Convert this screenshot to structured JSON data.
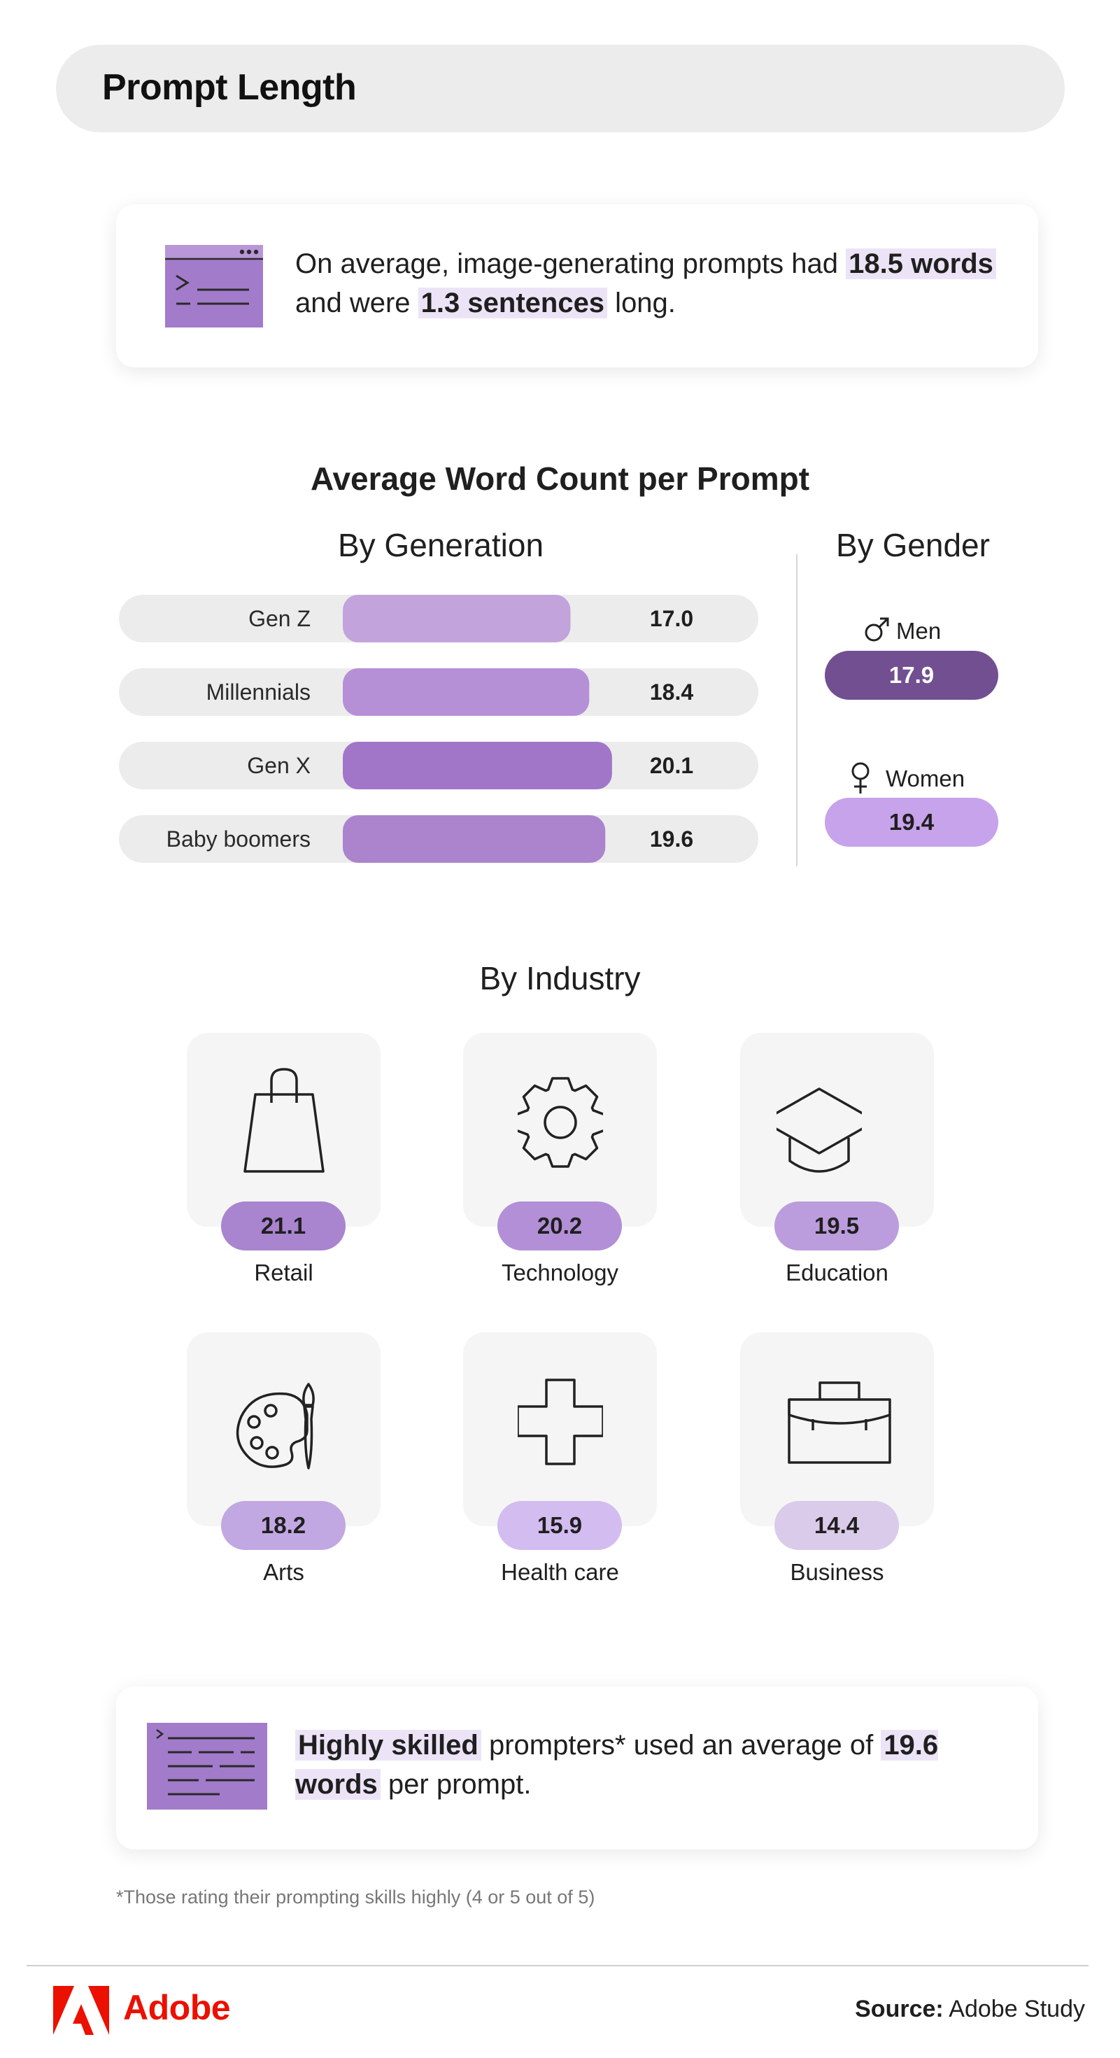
{
  "header": {
    "title": "Prompt Length"
  },
  "summary": {
    "pre": "On average, image-generating prompts had ",
    "highlight1": "18.5 words",
    "mid": " and were ",
    "highlight2": "1.3 sentences",
    "post": " long."
  },
  "chart_data": [
    {
      "type": "bar",
      "title": "Average Word Count per Prompt",
      "subtitle": "By Generation",
      "categories": [
        "Gen Z",
        "Millennials",
        "Gen X",
        "Baby boomers"
      ],
      "values": [
        17.0,
        18.4,
        20.1,
        19.6
      ],
      "value_labels": [
        "17.0",
        "18.4",
        "20.1",
        "19.6"
      ],
      "colors": [
        "#c2a3dc",
        "#b690d6",
        "#a176c8",
        "#ab84cd"
      ],
      "orientation": "horizontal"
    },
    {
      "type": "bar",
      "subtitle": "By Gender",
      "categories": [
        "Men",
        "Women"
      ],
      "values": [
        17.9,
        19.4
      ],
      "value_labels": [
        "17.9",
        "19.4"
      ],
      "colors": [
        "#724f91",
        "#c7a3eb"
      ]
    },
    {
      "type": "table",
      "subtitle": "By Industry",
      "categories": [
        "Retail",
        "Technology",
        "Education",
        "Arts",
        "Health care",
        "Business"
      ],
      "values": [
        21.1,
        20.2,
        19.5,
        18.2,
        15.9,
        14.4
      ],
      "value_labels": [
        "21.1",
        "20.2",
        "19.5",
        "18.2",
        "15.9",
        "14.4"
      ],
      "icons": [
        "shopping-bag-icon",
        "gear-icon",
        "graduation-cap-icon",
        "palette-icon",
        "medical-cross-icon",
        "briefcase-icon"
      ],
      "colors": [
        "#a984cf",
        "#b28fd6",
        "#bb9ddd",
        "#c2a8e2",
        "#d3bcf0",
        "#dacbea"
      ]
    }
  ],
  "skilled": {
    "highlight1": "Highly skilled",
    "mid": " prompters* used an average of ",
    "highlight2": "19.6 words",
    "post": " per prompt."
  },
  "footnote": "*Those rating their prompting skills highly (4 or 5 out of 5)",
  "footer": {
    "brand": "Adobe",
    "brand_color": "#eb1000",
    "source_label": "Source:",
    "source_value": "Adobe Study"
  }
}
